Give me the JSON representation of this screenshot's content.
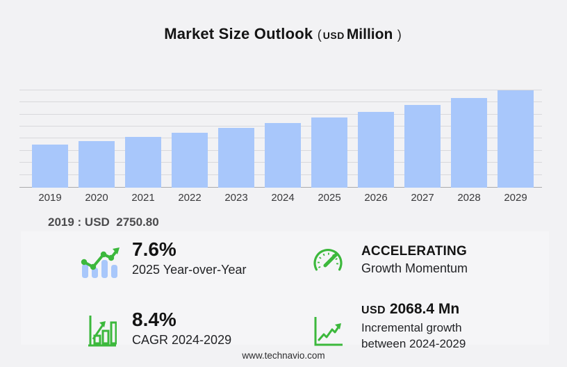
{
  "title": {
    "main": "Market Size Outlook",
    "paren_open": "(",
    "currency": "USD",
    "unit": "Million",
    "paren_close": ")"
  },
  "chart_data": {
    "type": "bar",
    "title": "Market Size Outlook (USD Million)",
    "categories": [
      "2019",
      "2020",
      "2021",
      "2022",
      "2023",
      "2024",
      "2025",
      "2026",
      "2027",
      "2028",
      "2029"
    ],
    "values": [
      2750.8,
      2988,
      3246,
      3527,
      3833,
      4158,
      4474,
      4859,
      5278,
      5733,
      6226.4
    ],
    "labeled_point": {
      "year": "2019",
      "value": 2750.8
    },
    "xlabel": "",
    "ylabel": "USD Million",
    "ylim": [
      0,
      6700
    ],
    "grid": "horizontal",
    "gridline_count": 8,
    "legend": "none",
    "bar_color": "#a8c7fb"
  },
  "annotation": "2019 : USD  2750.80",
  "stats": [
    {
      "icon": "trend-up-bars-icon",
      "value": "7.6%",
      "label": "2025 Year-over-Year"
    },
    {
      "icon": "speedometer-icon",
      "value": "ACCELERATING",
      "label": "Growth Momentum"
    },
    {
      "icon": "bar-chart-growth-icon",
      "value": "8.4%",
      "label": "CAGR 2024-2029"
    },
    {
      "icon": "incremental-growth-axis-icon",
      "value_prefix": "USD",
      "value": "2068.4 Mn",
      "label": "Incremental growth",
      "label2": "between 2024-2029"
    }
  ],
  "footer": {
    "website": "www.technavio.com"
  },
  "colors": {
    "accent_green": "#3cb83c",
    "bar_blue": "#a8c7fb",
    "background": "#f2f2f4",
    "panel": "#f5f5f7"
  }
}
